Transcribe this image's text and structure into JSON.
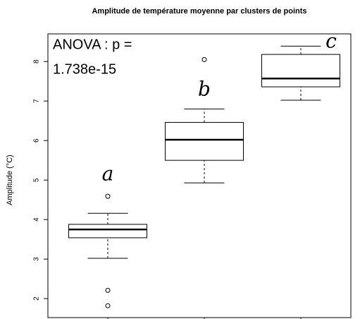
{
  "chart_data": {
    "type": "boxplot",
    "title": "Amplitude de température moyenne par clusters de points",
    "y_label": "Amplitude (°C)",
    "categories": [
      null,
      null,
      null
    ],
    "annotation_lines": [
      "ANOVA : p =",
      "1.738e-15"
    ],
    "group_letters": [
      "a",
      "b",
      "c"
    ],
    "boxes": [
      {
        "min": 3.02,
        "q1": 3.54,
        "median": 3.75,
        "q3": 3.88,
        "max": 4.16,
        "outliers": [
          4.59,
          2.21,
          1.82
        ]
      },
      {
        "min": 4.93,
        "q1": 5.5,
        "median": 6.02,
        "q3": 6.46,
        "max": 6.8,
        "outliers": [
          8.05
        ]
      },
      {
        "min": 7.02,
        "q1": 7.36,
        "median": 7.57,
        "q3": 8.18,
        "max": 8.39,
        "outliers": []
      }
    ],
    "color": "#000000",
    "ylim": [
      1.52,
      8.7
    ],
    "yticks": [
      2,
      3,
      4,
      5,
      6,
      7,
      8
    ],
    "grid": false
  }
}
